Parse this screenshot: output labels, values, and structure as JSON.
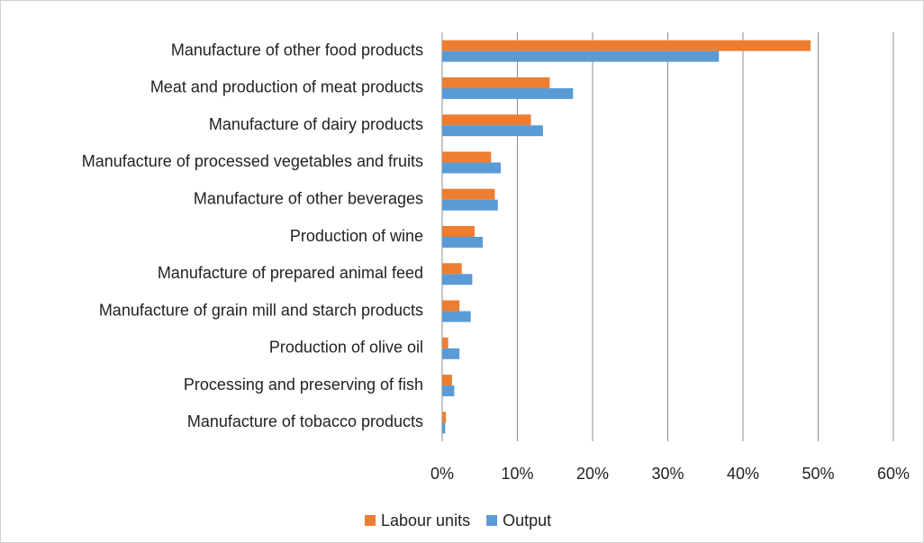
{
  "chart_data": {
    "type": "bar",
    "orientation": "horizontal",
    "categories": [
      "Manufacture of other food products",
      "Meat and production of meat products",
      "Manufacture of dairy products",
      "Manufacture of processed vegetables and fruits",
      "Manufacture of other beverages",
      "Production of wine",
      "Manufacture of prepared animal feed",
      "Manufacture of grain mill and starch products",
      "Production of olive oil",
      "Processing and preserving of fish",
      "Manufacture of tobacco products"
    ],
    "series": [
      {
        "name": "Labour units",
        "color": "#ed7d31",
        "values": [
          49,
          14.3,
          11.8,
          6.5,
          7.0,
          4.3,
          2.6,
          2.3,
          0.8,
          1.3,
          0.5
        ]
      },
      {
        "name": "Output",
        "color": "#5b9bd5",
        "values": [
          36.8,
          17.4,
          13.4,
          7.8,
          7.4,
          5.4,
          4.0,
          3.8,
          2.3,
          1.6,
          0.4
        ]
      }
    ],
    "xlim": [
      0,
      60
    ],
    "xticks": [
      {
        "value": 0,
        "label": "0%"
      },
      {
        "value": 10,
        "label": "10%"
      },
      {
        "value": 20,
        "label": "20%"
      },
      {
        "value": 30,
        "label": "30%"
      },
      {
        "value": 40,
        "label": "40%"
      },
      {
        "value": 50,
        "label": "50%"
      },
      {
        "value": 60,
        "label": "60%"
      }
    ],
    "grid": true,
    "legend": "bottom"
  }
}
